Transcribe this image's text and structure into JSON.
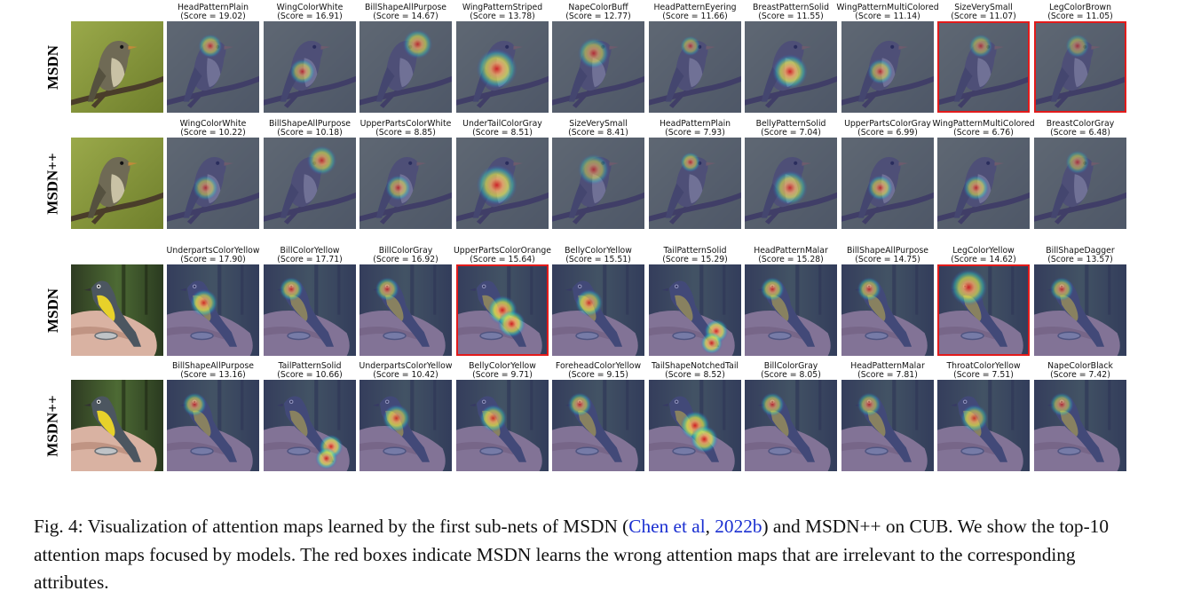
{
  "panels": [
    {
      "model": "MSDN",
      "species": "flycatcher",
      "maps": [
        {
          "attribute": "HeadPatternPlain",
          "score": "(Score = 19.02)",
          "wrong": false,
          "focus": "head",
          "intensity": 0.7
        },
        {
          "attribute": "WingColorWhite",
          "score": "(Score = 16.91)",
          "wrong": false,
          "focus": "wing",
          "intensity": 0.7
        },
        {
          "attribute": "BillShapeAllPurpose",
          "score": "(Score = 14.67)",
          "wrong": false,
          "focus": "bill",
          "intensity": 0.75
        },
        {
          "attribute": "WingPatternStriped",
          "score": "(Score = 13.78)",
          "wrong": false,
          "focus": "wing-large",
          "intensity": 0.9
        },
        {
          "attribute": "NapeColorBuff",
          "score": "(Score = 12.77)",
          "wrong": false,
          "focus": "nape",
          "intensity": 0.7
        },
        {
          "attribute": "HeadPatternEyering",
          "score": "(Score = 11.66)",
          "wrong": false,
          "focus": "eye",
          "intensity": 0.6
        },
        {
          "attribute": "BreastPatternSolid",
          "score": "(Score = 11.55)",
          "wrong": false,
          "focus": "breast",
          "intensity": 0.9
        },
        {
          "attribute": "WingPatternMultiColored",
          "score": "(Score = 11.14)",
          "wrong": false,
          "focus": "wing",
          "intensity": 0.7
        },
        {
          "attribute": "SizeVerySmall",
          "score": "(Score = 11.07)",
          "wrong": true,
          "focus": "head",
          "intensity": 0.6
        },
        {
          "attribute": "LegColorBrown",
          "score": "(Score = 11.05)",
          "wrong": true,
          "focus": "head",
          "intensity": 0.55
        }
      ]
    },
    {
      "model": "MSDN++",
      "species": "flycatcher",
      "maps": [
        {
          "attribute": "WingColorWhite",
          "score": "(Score = 10.22)",
          "wrong": false,
          "focus": "wing",
          "intensity": 0.65
        },
        {
          "attribute": "BillShapeAllPurpose",
          "score": "(Score = 10.18)",
          "wrong": false,
          "focus": "bill",
          "intensity": 0.75
        },
        {
          "attribute": "UpperPartsColorWhite",
          "score": "(Score = 8.85)",
          "wrong": false,
          "focus": "wing",
          "intensity": 0.7
        },
        {
          "attribute": "UnderTailColorGray",
          "score": "(Score = 8.51)",
          "wrong": false,
          "focus": "wing-large",
          "intensity": 0.9
        },
        {
          "attribute": "SizeVerySmall",
          "score": "(Score = 8.41)",
          "wrong": false,
          "focus": "nape",
          "intensity": 0.65
        },
        {
          "attribute": "HeadPatternPlain",
          "score": "(Score = 7.93)",
          "wrong": false,
          "focus": "eye",
          "intensity": 0.7
        },
        {
          "attribute": "BellyPatternSolid",
          "score": "(Score = 7.04)",
          "wrong": false,
          "focus": "breast",
          "intensity": 0.8
        },
        {
          "attribute": "UpperPartsColorGray",
          "score": "(Score = 6.99)",
          "wrong": false,
          "focus": "wing",
          "intensity": 0.75
        },
        {
          "attribute": "WingPatternMultiColored",
          "score": "(Score = 6.76)",
          "wrong": false,
          "focus": "wing",
          "intensity": 0.75
        },
        {
          "attribute": "BreastColorGray",
          "score": "(Score = 6.48)",
          "wrong": false,
          "focus": "head",
          "intensity": 0.6
        }
      ]
    },
    {
      "model": "MSDN",
      "species": "warbler",
      "maps": [
        {
          "attribute": "UnderpartsColorYellow",
          "score": "(Score = 17.90)",
          "wrong": false,
          "focus": "throat",
          "intensity": 0.85
        },
        {
          "attribute": "BillColorYellow",
          "score": "(Score = 17.71)",
          "wrong": false,
          "focus": "head",
          "intensity": 0.8
        },
        {
          "attribute": "BillColorGray",
          "score": "(Score = 16.92)",
          "wrong": false,
          "focus": "head",
          "intensity": 0.75
        },
        {
          "attribute": "UpperPartsColorOrange",
          "score": "(Score = 15.64)",
          "wrong": true,
          "focus": "body-long",
          "intensity": 0.95
        },
        {
          "attribute": "BellyColorYellow",
          "score": "(Score = 15.51)",
          "wrong": false,
          "focus": "throat",
          "intensity": 0.8
        },
        {
          "attribute": "TailPatternSolid",
          "score": "(Score = 15.29)",
          "wrong": false,
          "focus": "tail",
          "intensity": 0.9
        },
        {
          "attribute": "HeadPatternMalar",
          "score": "(Score = 15.28)",
          "wrong": false,
          "focus": "head",
          "intensity": 0.8
        },
        {
          "attribute": "BillShapeAllPurpose",
          "score": "(Score = 14.75)",
          "wrong": false,
          "focus": "head",
          "intensity": 0.75
        },
        {
          "attribute": "LegColorYellow",
          "score": "(Score = 14.62)",
          "wrong": true,
          "focus": "head-wide",
          "intensity": 0.9
        },
        {
          "attribute": "BillShapeDagger",
          "score": "(Score = 13.57)",
          "wrong": false,
          "focus": "head",
          "intensity": 0.75
        }
      ]
    },
    {
      "model": "MSDN++",
      "species": "warbler",
      "maps": [
        {
          "attribute": "BillShapeAllPurpose",
          "score": "(Score = 13.16)",
          "wrong": false,
          "focus": "head",
          "intensity": 0.75
        },
        {
          "attribute": "TailPatternSolid",
          "score": "(Score = 10.66)",
          "wrong": false,
          "focus": "tail",
          "intensity": 0.9
        },
        {
          "attribute": "UnderpartsColorYellow",
          "score": "(Score = 10.42)",
          "wrong": false,
          "focus": "throat",
          "intensity": 0.8
        },
        {
          "attribute": "BellyColorYellow",
          "score": "(Score = 9.71)",
          "wrong": false,
          "focus": "throat",
          "intensity": 0.8
        },
        {
          "attribute": "ForeheadColorYellow",
          "score": "(Score = 9.15)",
          "wrong": false,
          "focus": "head",
          "intensity": 0.75
        },
        {
          "attribute": "TailShapeNotchedTail",
          "score": "(Score = 8.52)",
          "wrong": false,
          "focus": "body-long",
          "intensity": 0.95
        },
        {
          "attribute": "BillColorGray",
          "score": "(Score = 8.05)",
          "wrong": false,
          "focus": "head",
          "intensity": 0.75
        },
        {
          "attribute": "HeadPatternMalar",
          "score": "(Score = 7.81)",
          "wrong": false,
          "focus": "head",
          "intensity": 0.7
        },
        {
          "attribute": "ThroatColorYellow",
          "score": "(Score = 7.51)",
          "wrong": false,
          "focus": "throat",
          "intensity": 0.75
        },
        {
          "attribute": "NapeColorBlack",
          "score": "(Score = 7.42)",
          "wrong": false,
          "focus": "head",
          "intensity": 0.7
        }
      ]
    }
  ],
  "caption": {
    "prefix": "Fig. 4: Visualization of attention maps learned by the first sub-nets of MSDN (",
    "cite_author": "Chen et al",
    "cite_sep": ", ",
    "cite_year": "2022b",
    "suffix": ") and MSDN++ on CUB. We show the top-10 attention maps focused by models. The red boxes indicate MSDN learns the wrong attention maps that are irrelevant to the corresponding attributes."
  },
  "colors": {
    "wrong_box": "#e21b1b",
    "citation": "#1a2fd1",
    "flycatcher_bg": "#8a9a3c",
    "warbler_bg": "#3f5a2c",
    "overlay_tint": "#3a3f8c"
  }
}
